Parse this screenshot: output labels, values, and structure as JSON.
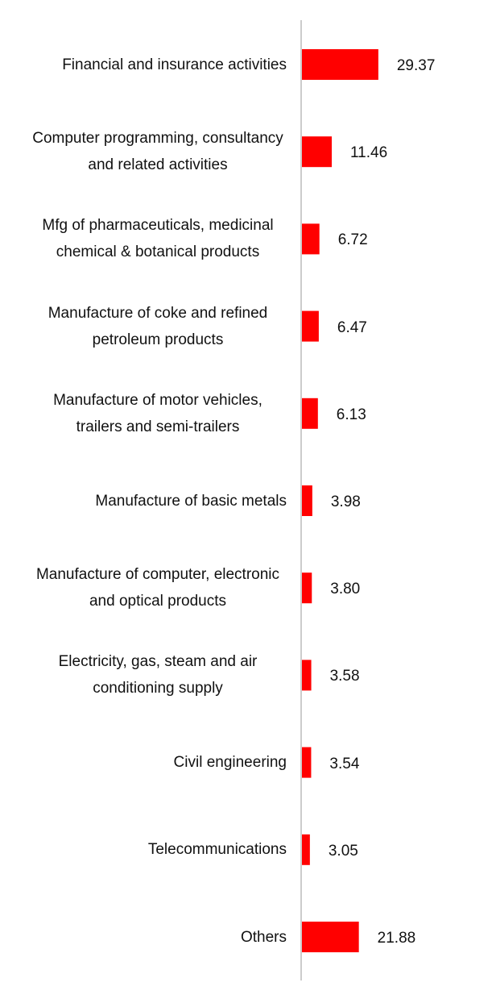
{
  "chart_data": {
    "type": "bar",
    "orientation": "horizontal",
    "categories": [
      "Financial and insurance activities",
      "Computer programming, consultancy and related activities",
      "Mfg of pharmaceuticals, medicinal chemical & botanical products",
      "Manufacture of coke and refined petroleum products",
      "Manufacture of motor vehicles, trailers and semi-trailers",
      "Manufacture of basic metals",
      "Manufacture of computer, electronic and optical products",
      "Electricity, gas, steam and air conditioning supply",
      "Civil engineering",
      "Telecommunications",
      "Others"
    ],
    "values": [
      29.37,
      11.46,
      6.72,
      6.47,
      6.13,
      3.98,
      3.8,
      3.58,
      3.54,
      3.05,
      21.88
    ],
    "value_labels": [
      "29.37",
      "11.46",
      "6.72",
      "6.47",
      "6.13",
      "3.98",
      "3.80",
      "3.58",
      "3.54",
      "3.05",
      "21.88"
    ],
    "color": "#ff0000"
  }
}
